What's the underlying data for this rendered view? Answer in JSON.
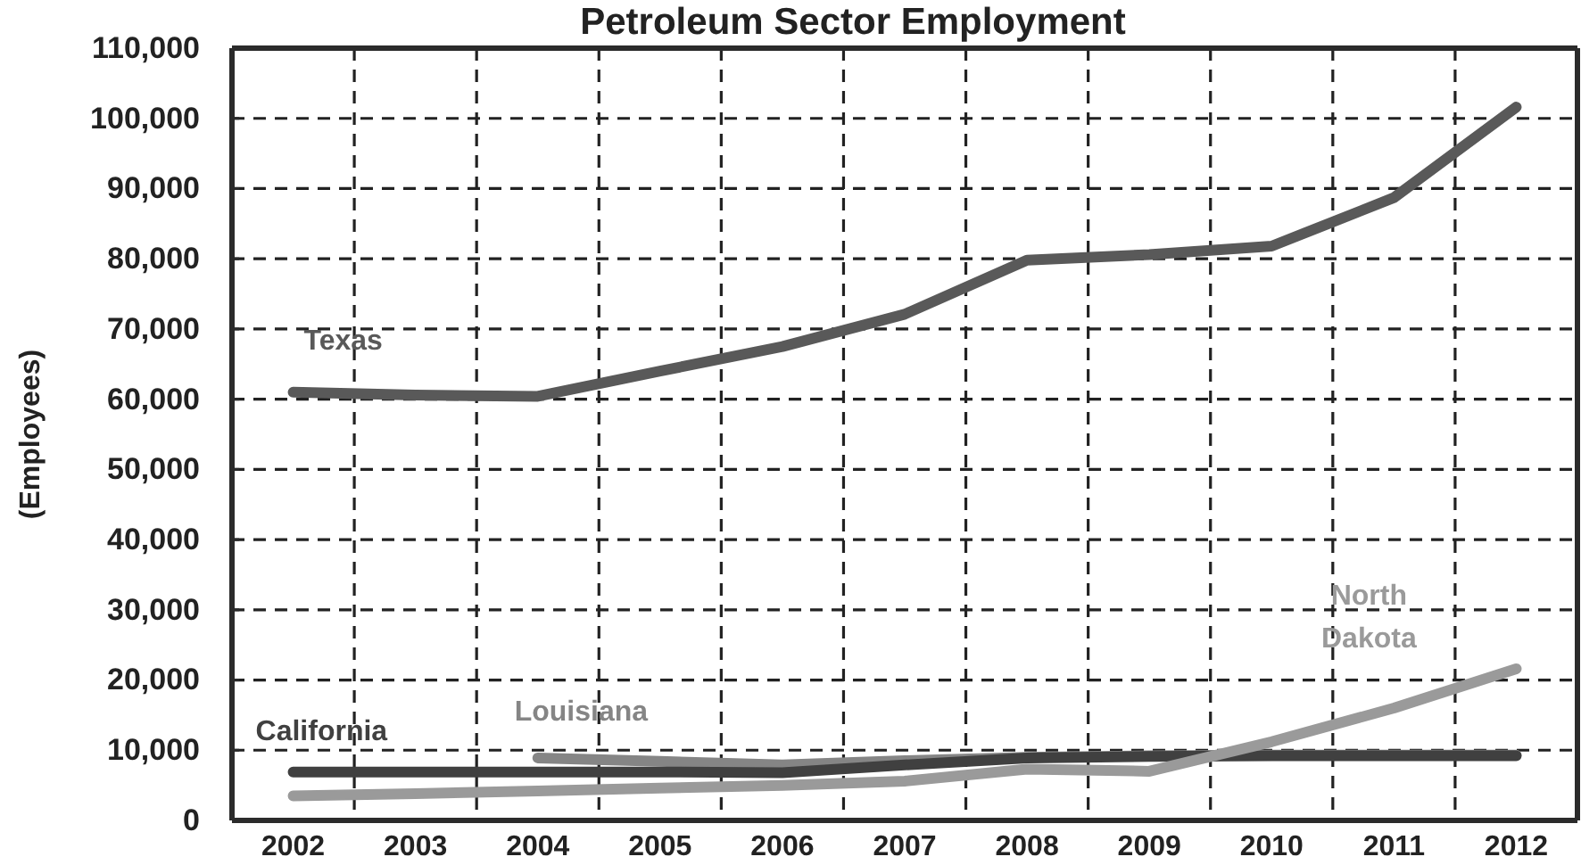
{
  "chart_data": {
    "type": "line",
    "title": "Petroleum Sector Employment",
    "ylabel": "(Employees)",
    "categories": [
      "2002",
      "2003",
      "2004",
      "2005",
      "2006",
      "2007",
      "2008",
      "2009",
      "2010",
      "2011",
      "2012"
    ],
    "series": [
      {
        "name": "Texas",
        "color": "#595959",
        "values": [
          61000,
          60600,
          60400,
          64000,
          67500,
          72100,
          79800,
          80600,
          81800,
          88700,
          101600
        ]
      },
      {
        "name": "Louisiana",
        "color": "#858585",
        "values": [
          null,
          null,
          8900,
          8400,
          7900,
          8500,
          9000,
          9200,
          9300,
          9300,
          9300
        ]
      },
      {
        "name": "California",
        "color": "#404040",
        "values": [
          6900,
          6900,
          6900,
          6900,
          6800,
          7900,
          8900,
          9100,
          9200,
          9200,
          9200
        ]
      },
      {
        "name": "North Dakota",
        "color": "#9a9a9a",
        "values": [
          3500,
          3800,
          4200,
          4600,
          5000,
          5600,
          7300,
          7000,
          11200,
          16000,
          21600
        ]
      }
    ],
    "ylim": [
      0,
      110000
    ],
    "yticks": [
      0,
      {
        "value": 10000,
        "label": "10,000"
      },
      {
        "value": 20000,
        "label": "20,000"
      },
      {
        "value": 30000,
        "label": "30,000"
      },
      {
        "value": 40000,
        "label": "40,000"
      },
      {
        "value": 50000,
        "label": "50,000"
      },
      {
        "value": 60000,
        "label": "60,000"
      },
      {
        "value": 70000,
        "label": "70,000"
      },
      {
        "value": 80000,
        "label": "80,000"
      },
      {
        "value": 90000,
        "label": "90,000"
      },
      {
        "value": 100000,
        "label": "100,000"
      },
      {
        "value": 110000,
        "label": "110,000"
      }
    ],
    "grid": true
  }
}
